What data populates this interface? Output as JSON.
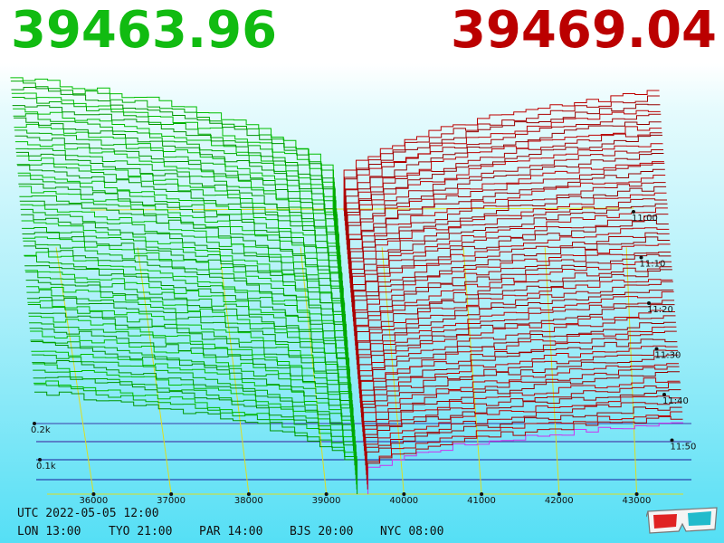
{
  "header": {
    "bid_price": "39463.96",
    "ask_price": "39469.04",
    "bid_color": "#11bb11",
    "ask_color": "#bb0000"
  },
  "footer": {
    "utc_label": "UTC 2022-05-05 12:00",
    "timezones": [
      {
        "city": "LON",
        "time": "13:00"
      },
      {
        "city": "TYO",
        "time": "21:00"
      },
      {
        "city": "PAR",
        "time": "14:00"
      },
      {
        "city": "BJS",
        "time": "20:00"
      },
      {
        "city": "NYC",
        "time": "08:00"
      }
    ],
    "glasses_icon": "3d-glasses-icon"
  },
  "chart_data": {
    "type": "area",
    "subtype": "3d order-book depth history",
    "x_axis": {
      "label": "",
      "ticks": [
        36000,
        37000,
        38000,
        39000,
        40000,
        41000,
        42000,
        43000
      ],
      "range": [
        35400,
        43600
      ]
    },
    "y_axis": {
      "label": "",
      "ticks": [
        {
          "value": 0.1,
          "label": "0.1k"
        },
        {
          "value": 0.2,
          "label": "0.2k"
        }
      ],
      "unit_labels": "k"
    },
    "time_axis": {
      "ticks": [
        "11:00",
        "11:10",
        "11:20",
        "11:30",
        "11:40",
        "11:50"
      ]
    },
    "series": [
      {
        "side": "bid",
        "color": "#11bb11",
        "price": 39463.96
      },
      {
        "side": "ask",
        "color": "#bb0000",
        "price": 39469.04
      }
    ],
    "grid": true
  }
}
